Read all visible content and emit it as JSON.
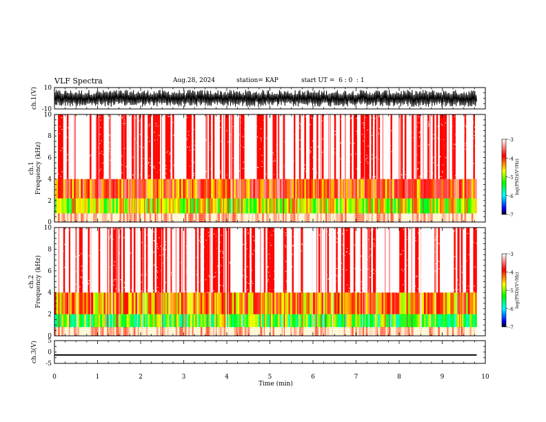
{
  "header": {
    "title": "VLF Spectra",
    "date": "Aug.28, 2024",
    "station": "station= KAP",
    "start_ut": "start UT =  6 : 0  : 1"
  },
  "chart_data": [
    {
      "type": "line",
      "panel": "ch1-waveform",
      "ylabel": "ch.1(V)",
      "ylim": [
        -10,
        10
      ],
      "y_ticks": [
        "10",
        "-10"
      ],
      "xlim": [
        0,
        10
      ],
      "note_values": "dense saturated waveform spanning roughly -8 to +8 V over 0-9.8 min"
    },
    {
      "type": "heatmap",
      "panel": "ch1-spectrogram",
      "ylabel": "ch.1\nFrequency (kHz)",
      "ylim": [
        0,
        10
      ],
      "y_ticks": [
        "0",
        "2",
        "4",
        "6",
        "8",
        "10"
      ],
      "xlim": [
        0,
        10
      ],
      "data_xmax": 9.8,
      "colorbar": {
        "label": "log(PSD)(V²/Hz)",
        "range": [
          -7,
          -3
        ],
        "ticks": [
          "-3",
          "-4",
          "-5",
          "-6",
          "-7"
        ]
      },
      "bands": [
        {
          "freq": [
            0,
            0.8
          ],
          "level": -3.0
        },
        {
          "freq": [
            0.8,
            2.2
          ],
          "level": -4.8
        },
        {
          "freq": [
            2.2,
            4.0
          ],
          "level": -4.0
        },
        {
          "freq": [
            4.0,
            10
          ],
          "level": -3.5
        }
      ]
    },
    {
      "type": "heatmap",
      "panel": "ch2-spectrogram",
      "ylabel": "ch.2\nFrequency (kHz)",
      "ylim": [
        0,
        10
      ],
      "y_ticks": [
        "0",
        "2",
        "4",
        "6",
        "8",
        "10"
      ],
      "xlim": [
        0,
        10
      ],
      "data_xmax": 9.8,
      "colorbar": {
        "label": "log(PSD)(V²/Hz)",
        "range": [
          -7,
          -3
        ],
        "ticks": [
          "-3",
          "-4",
          "-5",
          "-6",
          "-7"
        ]
      },
      "bands": [
        {
          "freq": [
            0,
            0.8
          ],
          "level": -3.0
        },
        {
          "freq": [
            0.8,
            2.0
          ],
          "level": -5.2
        },
        {
          "freq": [
            2.0,
            4.0
          ],
          "level": -4.3
        },
        {
          "freq": [
            4.0,
            10
          ],
          "level": -3.5
        }
      ]
    },
    {
      "type": "line",
      "panel": "ch3-waveform",
      "ylabel": "ch.3(V)",
      "ylim": [
        -5,
        5
      ],
      "y_ticks": [
        "5",
        "0",
        "-5"
      ],
      "xlim": [
        0,
        10
      ],
      "x_ticks": [
        "0",
        "1",
        "2",
        "3",
        "4",
        "5",
        "6",
        "7",
        "8",
        "9",
        "10"
      ],
      "xlabel": "Time (min)",
      "note_values": "flat thick band near -1.3 V from 0 to 9.8 min"
    }
  ],
  "colors": {
    "spectrum_white": "#ffffff",
    "spectrum_red": "#ff0000",
    "spectrum_yellow": "#ffff00",
    "spectrum_green": "#00ff00",
    "spectrum_cyan": "#00ffff",
    "spectrum_blue": "#0000ff",
    "spectrum_black": "#000000"
  }
}
